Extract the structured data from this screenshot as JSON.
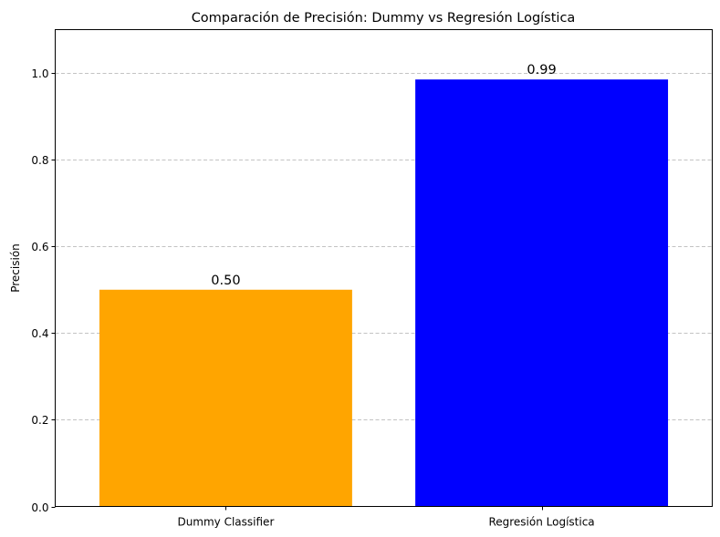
{
  "chart_data": {
    "type": "bar",
    "title": "Comparación de Precisión: Dummy vs Regresión Logística",
    "xlabel": "",
    "ylabel": "Precisión",
    "categories": [
      "Dummy Classifier",
      "Regresión Logística"
    ],
    "values": [
      0.5,
      0.985
    ],
    "data_labels": [
      "0.50",
      "0.99"
    ],
    "colors": [
      "#ffa500",
      "#0000ff"
    ],
    "ylim": [
      0,
      1.1
    ],
    "yticks": [
      0.0,
      0.2,
      0.4,
      0.6,
      0.8,
      1.0
    ],
    "ytick_labels": [
      "0.0",
      "0.2",
      "0.4",
      "0.6",
      "0.8",
      "1.0"
    ],
    "grid": "y-dashed",
    "grid_color": "#b0b0b0",
    "legend": "none"
  }
}
